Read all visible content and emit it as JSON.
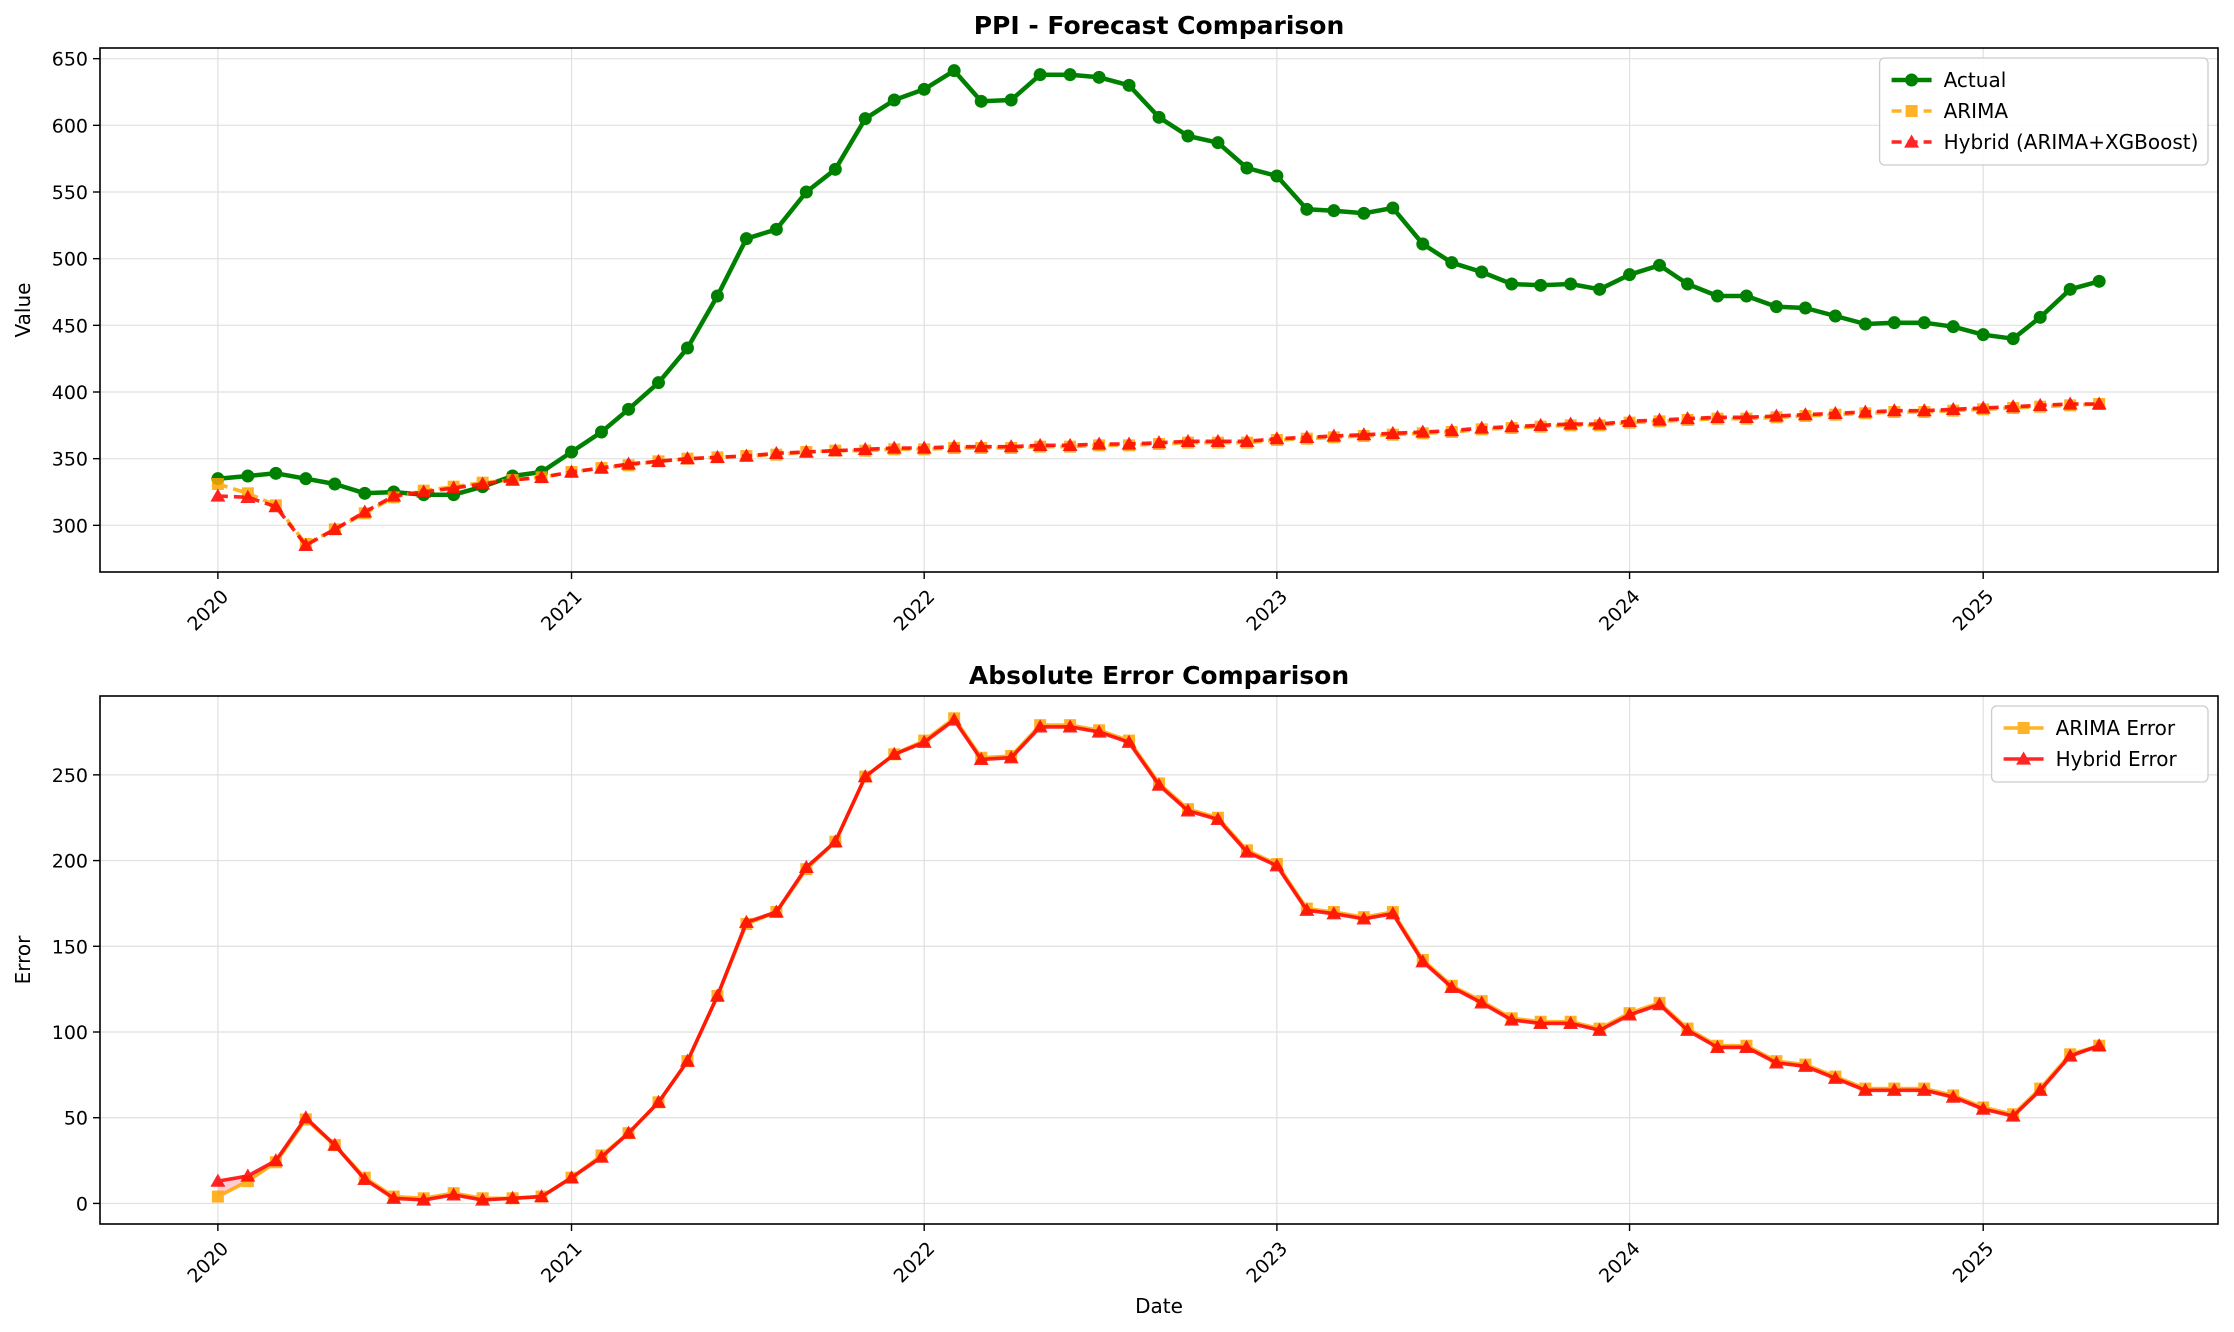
{
  "colors": {
    "actual": "#008000",
    "arima": "#FFA500",
    "hybrid": "#FF0000",
    "grid": "#e0e0e0",
    "fill": "#ffb6c1"
  },
  "chart_data": [
    {
      "type": "line",
      "title": "PPI - Forecast Comparison",
      "xlabel": "",
      "ylabel": "Value",
      "x_ticks": [
        "2020",
        "2021",
        "2022",
        "2023",
        "2024",
        "2025"
      ],
      "y_ticks": [
        300,
        350,
        400,
        450,
        500,
        550,
        600,
        650
      ],
      "ylim": [
        265,
        658
      ],
      "xlim": [
        "2019-09-01",
        "2025-09-01"
      ],
      "grid": true,
      "legend": "top-right",
      "dates": [
        "2020-01",
        "2020-02",
        "2020-03",
        "2020-04",
        "2020-05",
        "2020-06",
        "2020-07",
        "2020-08",
        "2020-09",
        "2020-10",
        "2020-11",
        "2020-12",
        "2021-01",
        "2021-02",
        "2021-03",
        "2021-04",
        "2021-05",
        "2021-06",
        "2021-07",
        "2021-08",
        "2021-09",
        "2021-10",
        "2021-11",
        "2021-12",
        "2022-01",
        "2022-02",
        "2022-03",
        "2022-04",
        "2022-05",
        "2022-06",
        "2022-07",
        "2022-08",
        "2022-09",
        "2022-10",
        "2022-11",
        "2022-12",
        "2023-01",
        "2023-02",
        "2023-03",
        "2023-04",
        "2023-05",
        "2023-06",
        "2023-07",
        "2023-08",
        "2023-09",
        "2023-10",
        "2023-11",
        "2023-12",
        "2024-01",
        "2024-02",
        "2024-03",
        "2024-04",
        "2024-05",
        "2024-06",
        "2024-07",
        "2024-08",
        "2024-09",
        "2024-10",
        "2024-11",
        "2024-12",
        "2025-01",
        "2025-02",
        "2025-03",
        "2025-04",
        "2025-05"
      ],
      "series": [
        {
          "name": "Actual",
          "marker": "circle",
          "values": [
            335,
            337,
            339,
            335,
            331,
            324,
            325,
            323,
            323,
            329,
            337,
            340,
            355,
            370,
            387,
            407,
            433,
            472,
            515,
            522,
            550,
            567,
            605,
            619,
            627,
            641,
            618,
            619,
            638,
            638,
            636,
            630,
            606,
            592,
            587,
            568,
            562,
            537,
            536,
            534,
            538,
            511,
            497,
            490,
            481,
            480,
            481,
            477,
            488,
            495,
            481,
            472,
            472,
            464,
            463,
            457,
            451,
            452,
            452,
            449,
            443,
            440,
            456,
            477,
            483
          ]
        },
        {
          "name": "ARIMA",
          "marker": "square",
          "values": [
            331,
            324,
            315,
            286,
            297,
            309,
            321,
            326,
            329,
            332,
            334,
            336,
            340,
            343,
            345,
            348,
            350,
            351,
            352,
            353,
            355,
            356,
            356,
            357,
            357,
            358,
            358,
            358,
            359,
            359,
            360,
            360,
            361,
            362,
            362,
            362,
            364,
            365,
            366,
            367,
            368,
            369,
            370,
            372,
            373,
            374,
            375,
            375,
            377,
            378,
            379,
            380,
            380,
            381,
            382,
            383,
            384,
            385,
            385,
            386,
            387,
            388,
            389,
            390,
            391
          ]
        },
        {
          "name": "Hybrid (ARIMA+XGBoost)",
          "marker": "triangle",
          "values": [
            322,
            321,
            314,
            285,
            297,
            310,
            322,
            325,
            328,
            331,
            334,
            336,
            340,
            343,
            346,
            348,
            350,
            351,
            352,
            354,
            355,
            356,
            357,
            358,
            358,
            359,
            359,
            359,
            360,
            360,
            361,
            361,
            362,
            363,
            363,
            363,
            365,
            366,
            367,
            368,
            369,
            370,
            371,
            373,
            374,
            375,
            376,
            376,
            378,
            379,
            380,
            381,
            381,
            382,
            383,
            384,
            385,
            386,
            386,
            387,
            388,
            389,
            390,
            391,
            391
          ]
        }
      ]
    },
    {
      "type": "line",
      "title": "Absolute Error Comparison",
      "xlabel": "Date",
      "ylabel": "Error",
      "x_ticks": [
        "2020",
        "2021",
        "2022",
        "2023",
        "2024",
        "2025"
      ],
      "y_ticks": [
        0,
        50,
        100,
        150,
        200,
        250
      ],
      "ylim": [
        -12,
        296
      ],
      "xlim": [
        "2019-09-01",
        "2025-09-01"
      ],
      "grid": true,
      "legend": "top-right",
      "series": [
        {
          "name": "ARIMA Error",
          "marker": "square",
          "values": [
            4,
            13,
            24,
            49,
            34,
            15,
            4,
            3,
            6,
            3,
            3,
            4,
            15,
            28,
            41,
            59,
            83,
            121,
            163,
            170,
            195,
            211,
            249,
            262,
            270,
            283,
            260,
            261,
            279,
            279,
            276,
            270,
            245,
            230,
            225,
            206,
            198,
            172,
            170,
            167,
            170,
            142,
            127,
            118,
            108,
            106,
            106,
            102,
            111,
            117,
            102,
            92,
            92,
            83,
            81,
            74,
            67,
            67,
            67,
            63,
            56,
            52,
            67,
            87,
            92
          ]
        },
        {
          "name": "Hybrid Error",
          "marker": "triangle",
          "values": [
            13,
            16,
            25,
            50,
            34,
            14,
            3,
            2,
            5,
            2,
            3,
            4,
            15,
            27,
            41,
            59,
            83,
            121,
            164,
            170,
            196,
            211,
            249,
            262,
            269,
            282,
            259,
            260,
            278,
            278,
            275,
            269,
            244,
            229,
            224,
            205,
            197,
            171,
            169,
            166,
            169,
            141,
            126,
            117,
            107,
            105,
            105,
            101,
            110,
            116,
            101,
            91,
            91,
            82,
            80,
            73,
            66,
            66,
            66,
            62,
            55,
            51,
            66,
            86,
            92
          ]
        }
      ]
    }
  ]
}
